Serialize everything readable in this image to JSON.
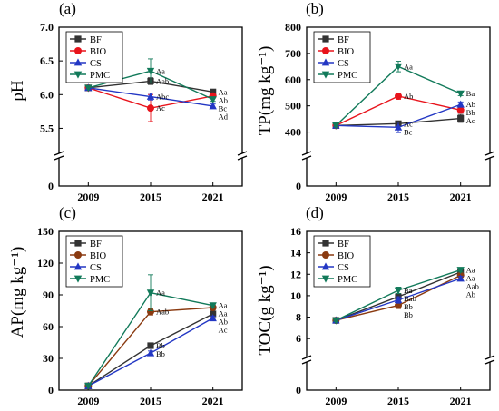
{
  "figure": {
    "colors": {
      "BF": "#333333",
      "BIO": "#e8141c",
      "CS": "#2337c4",
      "PMC": "#127a5a"
    },
    "bio_color_panel_cd": "#8a3a10"
  },
  "chart_data": [
    {
      "type": "line",
      "panel_label": "(a)",
      "ylabel": "pH",
      "categories": [
        "2009",
        "2015",
        "2021"
      ],
      "y_ticks": [
        "5.5",
        "6.0",
        "6.5",
        "7.0"
      ],
      "y_zero_label": "0",
      "ylim": [
        5.25,
        7.0
      ],
      "axis_break": true,
      "legend_position": "top-left",
      "series": [
        {
          "name": "BF",
          "marker": "square",
          "values": [
            6.1,
            6.2,
            6.04
          ],
          "errors": [
            0,
            0.05,
            0.03
          ],
          "labels": [
            "",
            "Aab",
            "Aa"
          ]
        },
        {
          "name": "BIO",
          "marker": "circle",
          "values": [
            6.1,
            5.8,
            5.98
          ],
          "errors": [
            0,
            0.2,
            0.03
          ],
          "labels": [
            "",
            "Ac",
            "Ab"
          ]
        },
        {
          "name": "CS",
          "marker": "triangle-up",
          "values": [
            6.1,
            5.97,
            5.83
          ],
          "errors": [
            0,
            0.05,
            0.03
          ],
          "labels": [
            "",
            "Abc",
            "Ad"
          ]
        },
        {
          "name": "PMC",
          "marker": "triangle-down",
          "values": [
            6.1,
            6.35,
            5.93
          ],
          "errors": [
            0,
            0.18,
            0.03
          ],
          "labels": [
            "",
            "Aa",
            "Bc"
          ]
        }
      ]
    },
    {
      "type": "line",
      "panel_label": "(b)",
      "ylabel": "TP(mg kg⁻¹)",
      "categories": [
        "2009",
        "2015",
        "2021"
      ],
      "y_ticks": [
        "400",
        "500",
        "600",
        "700",
        "800"
      ],
      "y_zero_label": "0",
      "ylim": [
        350,
        800
      ],
      "axis_break": true,
      "legend_position": "top-left",
      "series": [
        {
          "name": "BF",
          "marker": "square",
          "values": [
            425,
            432,
            452
          ],
          "errors": [
            5,
            10,
            15
          ],
          "labels": [
            "",
            "Ac",
            "Ac"
          ]
        },
        {
          "name": "BIO",
          "marker": "circle",
          "values": [
            425,
            537,
            484
          ],
          "errors": [
            5,
            12,
            12
          ],
          "labels": [
            "",
            "Ab",
            "Bb"
          ]
        },
        {
          "name": "CS",
          "marker": "triangle-up",
          "values": [
            425,
            418,
            505
          ],
          "errors": [
            5,
            20,
            10
          ],
          "labels": [
            "",
            "Bc",
            "Ab"
          ]
        },
        {
          "name": "PMC",
          "marker": "triangle-down",
          "values": [
            425,
            650,
            547
          ],
          "errors": [
            5,
            20,
            8
          ],
          "labels": [
            "",
            "Aa",
            "Ba"
          ]
        }
      ]
    },
    {
      "type": "line",
      "panel_label": "(c)",
      "ylabel": "AP(mg kg⁻¹)",
      "categories": [
        "2009",
        "2015",
        "2021"
      ],
      "y_ticks": [
        "0",
        "30",
        "60",
        "90",
        "120",
        "150"
      ],
      "ylim": [
        0,
        150
      ],
      "axis_break": false,
      "legend_position": "top-left",
      "series": [
        {
          "name": "BF",
          "marker": "square",
          "values": [
            4,
            42,
            72
          ],
          "errors": [
            1,
            2,
            2
          ],
          "labels": [
            "",
            "Bb",
            "Ab"
          ]
        },
        {
          "name": "BIO",
          "marker": "circle",
          "values": [
            4,
            74,
            78
          ],
          "errors": [
            1,
            3,
            2
          ],
          "labels": [
            "",
            "Aab",
            "Aa"
          ]
        },
        {
          "name": "CS",
          "marker": "triangle-up",
          "values": [
            4,
            35,
            68
          ],
          "errors": [
            1,
            2,
            2
          ],
          "labels": [
            "",
            "Bb",
            "Ac"
          ]
        },
        {
          "name": "PMC",
          "marker": "triangle-down",
          "values": [
            4,
            92,
            80
          ],
          "errors": [
            1,
            17,
            2
          ],
          "labels": [
            "",
            "Aa",
            "Aa"
          ]
        }
      ]
    },
    {
      "type": "line",
      "panel_label": "(d)",
      "ylabel": "TOC(g kg⁻¹)",
      "categories": [
        "2009",
        "2015",
        "2021"
      ],
      "y_ticks": [
        "6",
        "8",
        "10",
        "12",
        "14",
        "16"
      ],
      "y_zero_label": "0",
      "ylim": [
        5,
        16
      ],
      "axis_break": true,
      "legend_position": "top-left",
      "series": [
        {
          "name": "BF",
          "marker": "square",
          "values": [
            7.7,
            9.9,
            12.2
          ],
          "errors": [
            0.1,
            0.3,
            0.2
          ],
          "labels": [
            "",
            "Bab",
            "Aa"
          ]
        },
        {
          "name": "BIO",
          "marker": "circle",
          "values": [
            7.7,
            9.1,
            11.9
          ],
          "errors": [
            0.1,
            0.3,
            0.2
          ],
          "labels": [
            "",
            "Bb",
            "Aab"
          ]
        },
        {
          "name": "CS",
          "marker": "triangle-up",
          "values": [
            7.7,
            9.6,
            11.6
          ],
          "errors": [
            0.1,
            0.3,
            0.2
          ],
          "labels": [
            "",
            "Bb",
            "Ab"
          ]
        },
        {
          "name": "PMC",
          "marker": "triangle-down",
          "values": [
            7.7,
            10.5,
            12.4
          ],
          "errors": [
            0.1,
            0.3,
            0.2
          ],
          "labels": [
            "",
            "Ba",
            "Aa"
          ]
        }
      ]
    }
  ]
}
